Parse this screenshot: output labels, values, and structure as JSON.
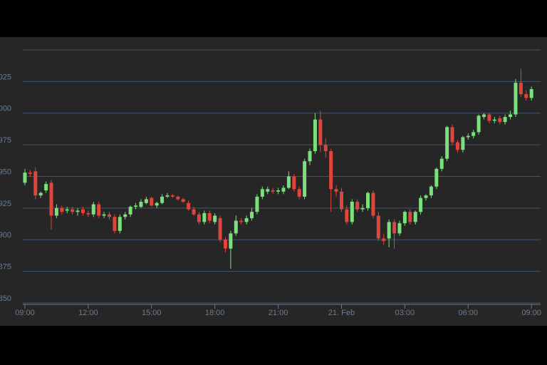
{
  "chart_data": {
    "type": "candlestick",
    "x": [
      0,
      0.25,
      0.5,
      0.75,
      1,
      1.25,
      1.5,
      1.75,
      2,
      2.25,
      2.5,
      2.75,
      3,
      3.25,
      3.5,
      3.75,
      4,
      4.25,
      4.5,
      4.75,
      5,
      5.25,
      5.5,
      5.75,
      6,
      6.25,
      6.5,
      6.75,
      7,
      7.25,
      7.5,
      7.75,
      8,
      8.25,
      8.5,
      8.75,
      9,
      9.25,
      9.5,
      9.75,
      10,
      10.25,
      10.5,
      10.75,
      11,
      11.25,
      11.5,
      11.75,
      12,
      12.25,
      12.5,
      12.75,
      13,
      13.25,
      13.5,
      13.75,
      14,
      14.25,
      14.5,
      14.75,
      15,
      15.25,
      15.5,
      15.75,
      16,
      16.25,
      16.5,
      16.75,
      17,
      17.25,
      17.5,
      17.75,
      18,
      18.25,
      18.5,
      18.75,
      19,
      19.25,
      19.5,
      19.75,
      20,
      20.25,
      20.5,
      20.75,
      21,
      21.25,
      21.5,
      21.75,
      22,
      22.25,
      22.5,
      22.75,
      23,
      23.25,
      23.5,
      23.75,
      24
    ],
    "open": [
      945,
      953,
      954,
      935,
      939,
      945,
      919,
      925,
      923,
      924,
      922,
      924,
      921,
      920,
      928,
      919,
      920,
      918,
      907,
      918,
      920,
      926,
      926,
      929,
      933,
      927,
      929,
      934,
      935,
      934,
      932,
      929,
      924,
      920,
      914,
      921,
      914,
      917,
      900,
      893,
      905,
      915,
      914,
      917,
      922,
      934,
      938,
      939,
      938,
      938,
      941,
      950,
      940,
      934,
      962,
      970,
      995,
      975,
      970,
      940,
      938,
      924,
      914,
      930,
      924,
      925,
      937,
      919,
      901,
      901,
      914,
      905,
      913,
      922,
      914,
      922,
      933,
      935,
      942,
      956,
      964,
      989,
      977,
      971,
      981,
      982,
      985,
      997,
      999,
      994,
      996,
      993,
      997,
      999,
      1024,
      1015,
      1012
    ],
    "high": [
      956,
      955,
      957,
      938,
      946,
      947,
      928,
      927,
      926,
      926,
      925,
      926,
      923,
      930,
      930,
      922,
      922,
      920,
      920,
      922,
      927,
      929,
      932,
      934,
      934,
      930,
      936,
      937,
      936,
      935,
      933,
      931,
      926,
      922,
      923,
      923,
      921,
      919,
      902,
      907,
      919,
      917,
      919,
      925,
      936,
      942,
      942,
      941,
      941,
      943,
      954,
      952,
      942,
      964,
      972,
      1000,
      1002,
      980,
      972,
      943,
      941,
      927,
      932,
      932,
      928,
      938,
      939,
      922,
      905,
      916,
      916,
      915,
      923,
      924,
      923,
      935,
      936,
      943,
      957,
      966,
      990,
      991,
      979,
      982,
      984,
      987,
      999,
      1000,
      1000,
      997,
      998,
      999,
      1002,
      1027,
      1035,
      1018,
      1021
    ],
    "low": [
      943,
      950,
      932,
      933,
      937,
      908,
      917,
      920,
      921,
      920,
      919,
      919,
      918,
      918,
      917,
      917,
      916,
      905,
      905,
      916,
      918,
      924,
      925,
      928,
      926,
      925,
      928,
      933,
      933,
      931,
      929,
      923,
      919,
      912,
      912,
      913,
      912,
      898,
      890,
      877,
      903,
      912,
      912,
      915,
      920,
      932,
      936,
      936,
      936,
      936,
      940,
      938,
      932,
      932,
      959,
      968,
      969,
      965,
      922,
      934,
      922,
      912,
      912,
      922,
      922,
      923,
      917,
      899,
      896,
      894,
      893,
      903,
      911,
      912,
      912,
      920,
      931,
      933,
      940,
      954,
      962,
      975,
      969,
      969,
      979,
      980,
      983,
      995,
      992,
      992,
      991,
      991,
      995,
      997,
      1013,
      1010,
      1010
    ],
    "close": [
      953,
      952,
      935,
      937,
      944,
      919,
      925,
      922,
      924,
      922,
      923,
      921,
      920,
      928,
      919,
      920,
      918,
      907,
      918,
      920,
      926,
      927,
      930,
      932,
      927,
      929,
      934,
      935,
      934,
      932,
      930,
      924,
      920,
      914,
      921,
      915,
      919,
      900,
      893,
      905,
      915,
      914,
      917,
      922,
      934,
      940,
      940,
      938,
      939,
      941,
      950,
      940,
      934,
      962,
      970,
      995,
      975,
      970,
      940,
      938,
      924,
      914,
      930,
      924,
      925,
      937,
      919,
      901,
      899,
      914,
      905,
      913,
      922,
      914,
      922,
      933,
      935,
      942,
      956,
      964,
      989,
      977,
      971,
      981,
      982,
      985,
      998,
      999,
      994,
      995,
      993,
      997,
      999,
      1024,
      1015,
      1012,
      1019
    ],
    "up_color": "#7be07b",
    "down_color": "#e0453b",
    "xlim": [
      -0.1,
      24.5
    ],
    "xticks": [
      {
        "value": 0,
        "label": "09:00"
      },
      {
        "value": 3,
        "label": "12:00"
      },
      {
        "value": 6,
        "label": "15:00"
      },
      {
        "value": 9,
        "label": "18:00"
      },
      {
        "value": 12,
        "label": "21:00"
      },
      {
        "value": 15,
        "label": "21. Feb"
      },
      {
        "value": 18,
        "label": "03:00"
      },
      {
        "value": 21,
        "label": "06:00"
      },
      {
        "value": 24,
        "label": "09:00"
      }
    ],
    "ylim": [
      850,
      1050
    ],
    "yticks": [
      850,
      875,
      900,
      925,
      950,
      975,
      {
        "value": 1000,
        "label": "000"
      },
      {
        "value": 1025,
        "label": "025"
      }
    ],
    "grid": true
  }
}
